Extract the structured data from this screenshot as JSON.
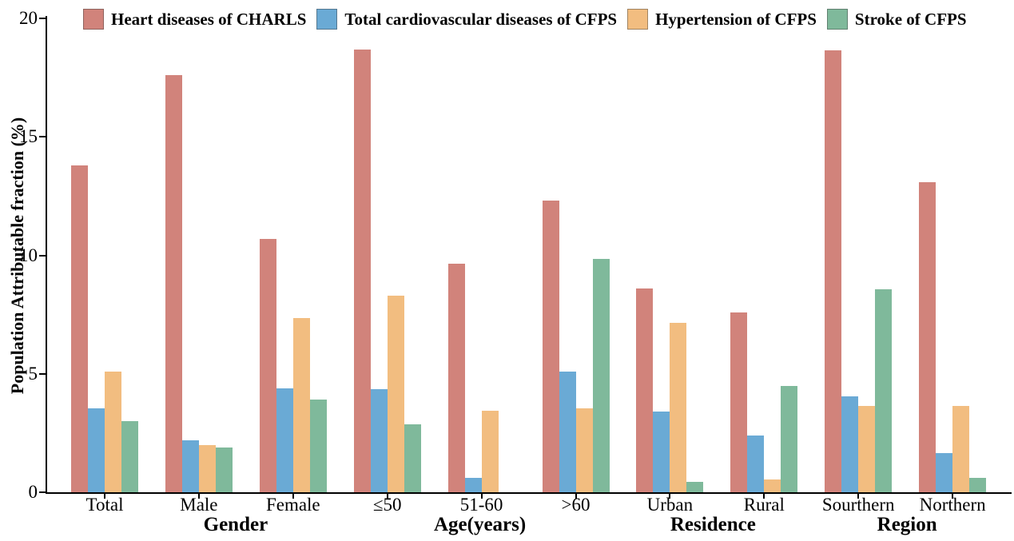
{
  "chart_data": {
    "type": "bar",
    "title": "",
    "xlabel": "",
    "ylabel": "Population Attributable fraction (%)",
    "ylim": [
      0,
      20
    ],
    "yticks": [
      0,
      5,
      10,
      15,
      20
    ],
    "grid": false,
    "legend_position": "top",
    "categories": [
      "Total",
      "Male",
      "Female",
      "≤50",
      "51-60",
      ">60",
      "Urban",
      "Rural",
      "Sourthern",
      "Northern"
    ],
    "groups": [
      {
        "label": "Gender",
        "span": [
          0,
          2
        ]
      },
      {
        "label": "Age(years)",
        "span": [
          3,
          5
        ]
      },
      {
        "label": "Residence",
        "span": [
          6,
          7
        ]
      },
      {
        "label": "Region",
        "span": [
          8,
          9
        ]
      }
    ],
    "series": [
      {
        "name": "Heart diseases of CHARLS",
        "color": "#D1837B",
        "values": [
          13.8,
          17.6,
          10.7,
          18.7,
          9.65,
          12.3,
          8.6,
          7.6,
          18.65,
          13.1
        ]
      },
      {
        "name": "Total cardiovascular diseases of CFPS",
        "color": "#6AAAD5",
        "values": [
          3.55,
          2.2,
          4.4,
          4.35,
          0.6,
          5.1,
          3.4,
          2.4,
          4.05,
          1.65
        ]
      },
      {
        "name": "Hypertension of CFPS",
        "color": "#F2BD80",
        "values": [
          5.1,
          2.0,
          7.35,
          8.3,
          3.45,
          3.55,
          7.15,
          0.55,
          3.65,
          3.65
        ]
      },
      {
        "name": "Stroke of CFPS",
        "color": "#7FB99B",
        "values": [
          3.0,
          1.9,
          3.9,
          2.85,
          0,
          9.85,
          0.45,
          4.5,
          8.55,
          0.6
        ]
      }
    ],
    "axis_color": "#000000"
  }
}
